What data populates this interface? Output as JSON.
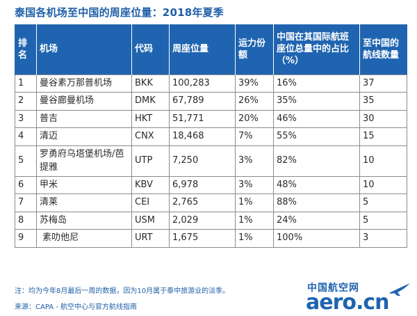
{
  "title": "泰国各机场至中国的周座位量：2018年夏季",
  "table": {
    "headers": [
      "排名",
      "机场",
      "代码",
      "周座位量",
      "运力份额",
      "中国在其国际航班座位总量中的占比（%）",
      "至中国的航线数量"
    ],
    "rows": [
      [
        "1",
        "曼谷素万那普机场",
        "BKK",
        "100,283",
        "39%",
        "16%",
        "37"
      ],
      [
        "2",
        "曼谷廊曼机场",
        "DMK",
        "67,789",
        "26%",
        "35%",
        "35"
      ],
      [
        "3",
        "普吉",
        "HKT",
        "51,771",
        "20%",
        "46%",
        "30"
      ],
      [
        "4",
        "清迈",
        "CNX",
        "18,468",
        "7%",
        "55%",
        "15"
      ],
      [
        "5",
        "罗勇府乌塔堡机场/芭提雅",
        "UTP",
        "7,250",
        "3%",
        "82%",
        "10"
      ],
      [
        "6",
        "甲米",
        "KBV",
        "6,978",
        "3%",
        "48%",
        "10"
      ],
      [
        "7",
        "清莱",
        "CEI",
        "2,765",
        "1%",
        "88%",
        "5"
      ],
      [
        "8",
        "苏梅岛",
        "USM",
        "2,029",
        "1%",
        "24%",
        "5"
      ],
      [
        "9",
        " 素叻他尼",
        "URT",
        "1,675",
        "1%",
        "100%",
        "3"
      ]
    ]
  },
  "footnote": "注：均为今年8月最后一周的数据，因为10月属于泰中旅游业的淡季。",
  "source": "来源：CAPA - 航空中心与官方航线指南",
  "logo": {
    "cn": "中国航空网",
    "en": "aero.cn",
    "icon": "airplane-icon",
    "color": "#1f64b0"
  }
}
